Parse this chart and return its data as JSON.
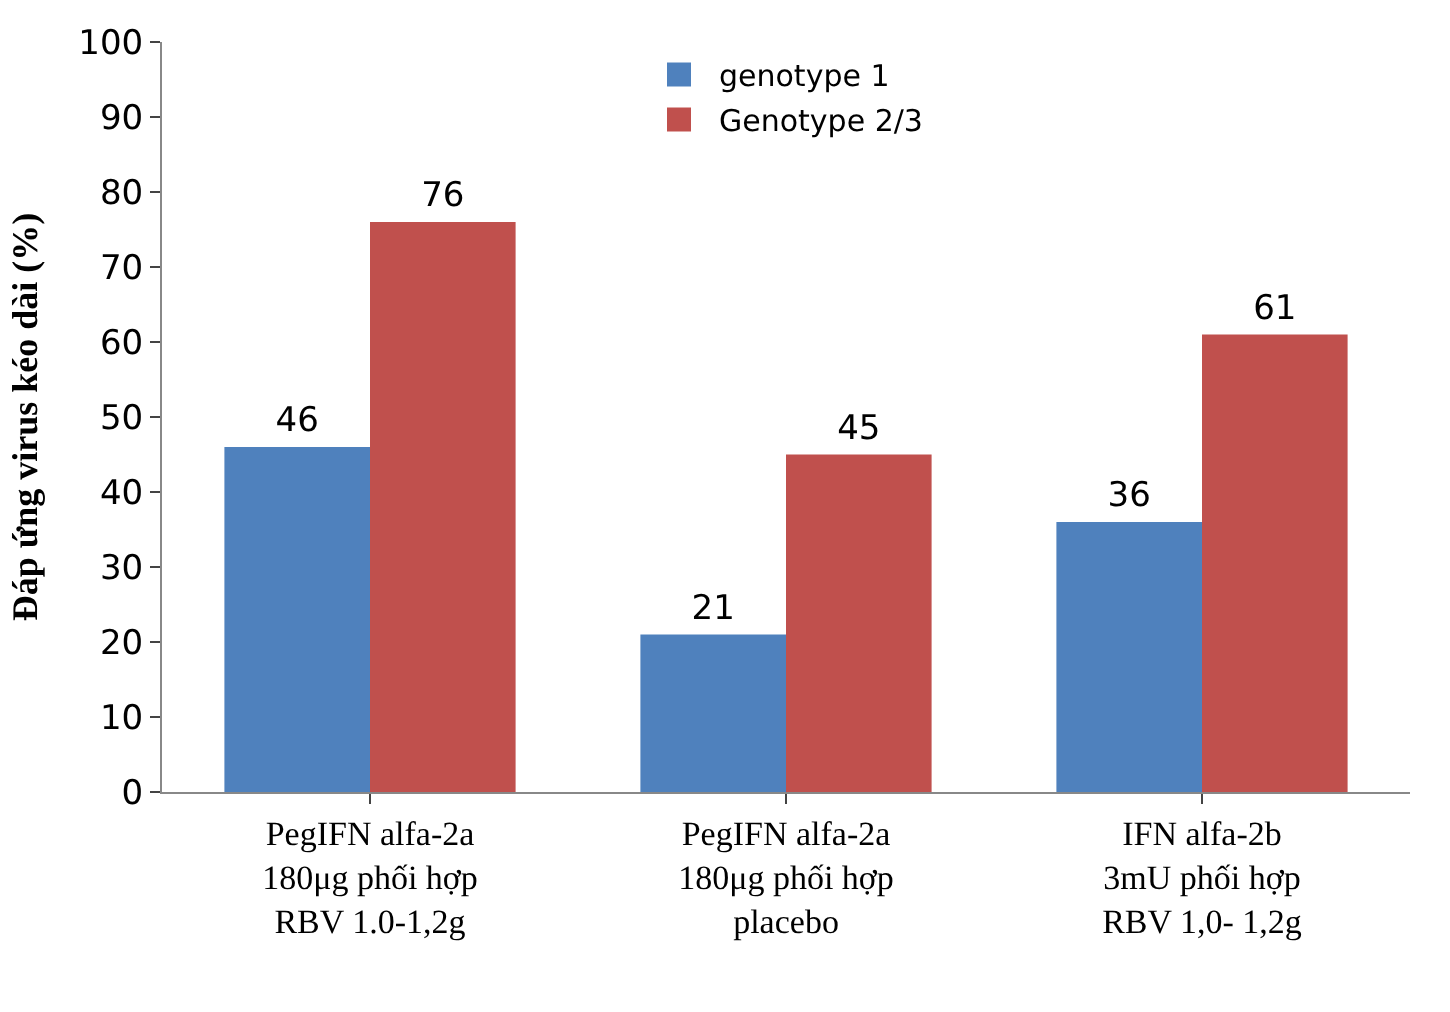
{
  "chart_data": {
    "type": "bar",
    "ylabel": "Đáp ứng virus kéo dài (%)",
    "categories": [
      "PegIFN alfa-2a\n180μg phối hợp\nRBV 1.0-1,2g",
      "PegIFN alfa-2a\n180μg phối hợp\nplacebo",
      "IFN alfa-2b\n3mU phối hợp\nRBV 1,0- 1,2g"
    ],
    "series": [
      {
        "name": "genotype 1",
        "color": "#4f81bd",
        "values": [
          46,
          21,
          36
        ]
      },
      {
        "name": "Genotype 2/3",
        "color": "#c0504d",
        "values": [
          76,
          45,
          61
        ]
      }
    ],
    "ylim": [
      0,
      100
    ],
    "yticks": [
      0,
      10,
      20,
      30,
      40,
      50,
      60,
      70,
      80,
      90,
      100
    ],
    "legend": "top",
    "data_labels": true
  }
}
